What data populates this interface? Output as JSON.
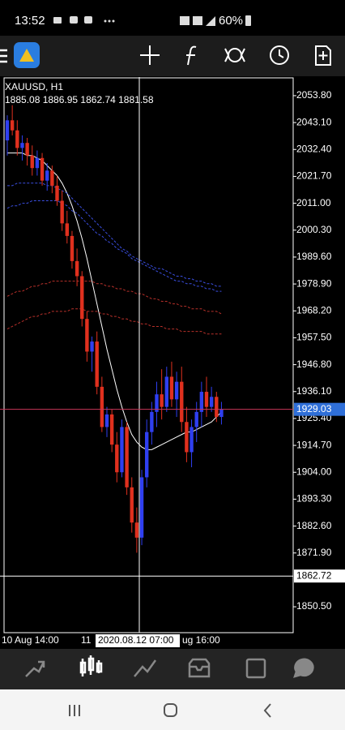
{
  "status_bar": {
    "time": "13:52",
    "battery": "60%"
  },
  "chart_data": {
    "type": "candlestick",
    "title": "XAUUSD, H1",
    "subtitle": "1885.08 1886.95 1862.74 1881.58",
    "open": [
      2036,
      2044,
      2040,
      2033,
      2035,
      2030,
      2025,
      2029,
      2020,
      2024,
      2018,
      2012,
      2003,
      1998,
      1988,
      1982,
      1965,
      1952,
      1956,
      1938,
      1922,
      1927,
      1915,
      1904,
      1922,
      1898,
      1884,
      1878,
      1902,
      1920,
      1928,
      1935,
      1930,
      1942,
      1933,
      1940,
      1924,
      1912,
      1922,
      1928,
      1936,
      1930,
      1934,
      1926
    ],
    "high": [
      2046,
      2050,
      2044,
      2038,
      2037,
      2034,
      2032,
      2031,
      2027,
      2026,
      2022,
      2016,
      2008,
      2000,
      1993,
      1984,
      1968,
      1958,
      1960,
      1942,
      1930,
      1929,
      1920,
      1925,
      1924,
      1902,
      1890,
      1905,
      1925,
      1932,
      1940,
      1945,
      1946,
      1948,
      1944,
      1946,
      1930,
      1925,
      1932,
      1940,
      1942,
      1938,
      1936,
      1932
    ],
    "low": [
      2030,
      2038,
      2030,
      2028,
      2026,
      2022,
      2022,
      2018,
      2016,
      2015,
      2010,
      2000,
      1995,
      1985,
      1978,
      1962,
      1948,
      1944,
      1935,
      1920,
      1918,
      1912,
      1900,
      1902,
      1895,
      1880,
      1872,
      1875,
      1898,
      1915,
      1922,
      1925,
      1928,
      1930,
      1926,
      1920,
      1908,
      1906,
      1916,
      1922,
      1926,
      1928,
      1924,
      1923
    ],
    "close": [
      2044,
      2040,
      2033,
      2035,
      2030,
      2025,
      2029,
      2020,
      2024,
      2018,
      2012,
      2003,
      1998,
      1988,
      1982,
      1965,
      1952,
      1956,
      1938,
      1922,
      1927,
      1915,
      1904,
      1922,
      1898,
      1884,
      1878,
      1902,
      1920,
      1928,
      1935,
      1930,
      1942,
      1933,
      1940,
      1924,
      1912,
      1922,
      1928,
      1936,
      1930,
      1934,
      1926,
      1929
    ],
    "up_color": "#2f3ff0",
    "down_color": "#e0301e",
    "moving_averages": [
      {
        "color": "#ffffff",
        "dashed": false,
        "values": [
          2031,
          2031,
          2031,
          2031,
          2030,
          2030,
          2029,
          2028,
          2026,
          2024,
          2022,
          2019,
          2015,
          2010,
          2004,
          1997,
          1989,
          1980,
          1971,
          1962,
          1953,
          1945,
          1937,
          1930,
          1924,
          1919,
          1916,
          1914,
          1913,
          1913,
          1914,
          1915,
          1916,
          1917,
          1918,
          1919,
          1920,
          1920,
          1921,
          1922,
          1923,
          1924,
          1926,
          1928
        ]
      },
      {
        "color": "#3a4ee0",
        "dashed": true,
        "values": [
          2018,
          2018,
          2019,
          2019,
          2019,
          2019,
          2019,
          2019,
          2018,
          2018,
          2017,
          2016,
          2015,
          2013,
          2011,
          2009,
          2007,
          2005,
          2003,
          2001,
          1999,
          1997,
          1995,
          1993,
          1992,
          1990,
          1989,
          1988,
          1987,
          1986,
          1985,
          1985,
          1984,
          1983,
          1982,
          1982,
          1981,
          1981,
          1980,
          1980,
          1979,
          1979,
          1978,
          1978
        ]
      },
      {
        "color": "#3a4ee0",
        "dashed": true,
        "values": [
          2009,
          2010,
          2010,
          2011,
          2011,
          2012,
          2012,
          2012,
          2012,
          2012,
          2012,
          2011,
          2010,
          2008,
          2007,
          2005,
          2003,
          2001,
          1999,
          1998,
          1996,
          1995,
          1993,
          1992,
          1991,
          1989,
          1988,
          1987,
          1986,
          1985,
          1984,
          1983,
          1982,
          1981,
          1980,
          1980,
          1979,
          1979,
          1978,
          1978,
          1977,
          1977,
          1976,
          1976
        ]
      },
      {
        "color": "#b8302a",
        "dashed": true,
        "values": [
          1974,
          1975,
          1976,
          1976,
          1977,
          1978,
          1978,
          1979,
          1979,
          1980,
          1980,
          1980,
          1980,
          1980,
          1980,
          1980,
          1980,
          1980,
          1979,
          1979,
          1978,
          1978,
          1977,
          1977,
          1976,
          1976,
          1975,
          1975,
          1974,
          1973,
          1973,
          1972,
          1972,
          1971,
          1971,
          1970,
          1970,
          1969,
          1969,
          1969,
          1968,
          1968,
          1968,
          1967
        ]
      },
      {
        "color": "#b8302a",
        "dashed": true,
        "values": [
          1961,
          1962,
          1963,
          1964,
          1965,
          1966,
          1966,
          1967,
          1967,
          1968,
          1968,
          1968,
          1968,
          1969,
          1969,
          1969,
          1968,
          1968,
          1968,
          1967,
          1967,
          1966,
          1966,
          1965,
          1965,
          1964,
          1964,
          1963,
          1963,
          1962,
          1962,
          1962,
          1961,
          1961,
          1961,
          1960,
          1960,
          1960,
          1960,
          1960,
          1959,
          1959,
          1959,
          1959
        ]
      }
    ],
    "ylim": [
      1840.2,
      2061.2
    ],
    "yticks": [
      {
        "value": 2053.8,
        "label": "2053.80"
      },
      {
        "value": 2043.1,
        "label": "2043.10"
      },
      {
        "value": 2032.4,
        "label": "2032.40"
      },
      {
        "value": 2021.7,
        "label": "2021.70"
      },
      {
        "value": 2011,
        "label": "2011.00"
      },
      {
        "value": 2000.3,
        "label": "2000.30"
      },
      {
        "value": 1989.6,
        "label": "1989.60"
      },
      {
        "value": 1978.9,
        "label": "1978.90"
      },
      {
        "value": 1968.2,
        "label": "1968.20"
      },
      {
        "value": 1957.5,
        "label": "1957.50"
      },
      {
        "value": 1946.8,
        "label": "1946.80"
      },
      {
        "value": 1936.1,
        "label": "1936.10"
      },
      {
        "value": 1925.4,
        "label": "1925.40"
      },
      {
        "value": 1914.7,
        "label": "1914.70"
      },
      {
        "value": 1904,
        "label": "1904.00"
      },
      {
        "value": 1893.3,
        "label": "1893.30"
      },
      {
        "value": 1882.6,
        "label": "1882.60"
      },
      {
        "value": 1871.9,
        "label": "1871.90"
      },
      {
        "value": 1850.5,
        "label": "1850.50"
      }
    ],
    "price_line": 1929.03,
    "crosshair_price": 1862.72,
    "x_labels": [
      "10 Aug 14:00",
      "11",
      "2020.08.12 07:00",
      "ug 16:00"
    ]
  }
}
